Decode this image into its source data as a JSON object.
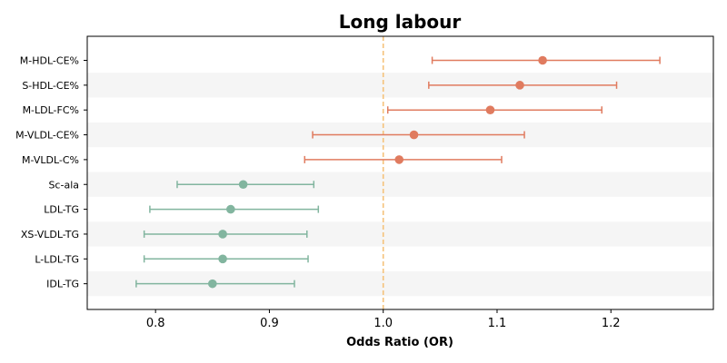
{
  "chart_data": {
    "type": "forest",
    "title": "Long labour",
    "xlabel": "Odds Ratio (OR)",
    "xlim": [
      0.74,
      1.29
    ],
    "xticks": [
      0.8,
      0.9,
      1.0,
      1.1,
      1.2
    ],
    "xtick_labels": [
      "0.8",
      "0.9",
      "1.0",
      "1.1",
      "1.2"
    ],
    "reference_line": 1.0,
    "reference_color": "#f5c27a",
    "band_color": "#f5f5f5",
    "colors": {
      "positive": "#e07b5f",
      "negative": "#82b59f"
    },
    "rows": [
      {
        "label": "M-HDL-CE%",
        "or": 1.14,
        "lo": 1.043,
        "hi": 1.243,
        "group": "positive"
      },
      {
        "label": "S-HDL-CE%",
        "or": 1.12,
        "lo": 1.04,
        "hi": 1.205,
        "group": "positive"
      },
      {
        "label": "M-LDL-FC%",
        "or": 1.094,
        "lo": 1.004,
        "hi": 1.192,
        "group": "positive"
      },
      {
        "label": "M-VLDL-CE%",
        "or": 1.027,
        "lo": 0.938,
        "hi": 1.124,
        "group": "positive"
      },
      {
        "label": "M-VLDL-C%",
        "or": 1.014,
        "lo": 0.931,
        "hi": 1.104,
        "group": "positive"
      },
      {
        "label": "Sc-ala",
        "or": 0.877,
        "lo": 0.819,
        "hi": 0.939,
        "group": "negative"
      },
      {
        "label": "LDL-TG",
        "or": 0.866,
        "lo": 0.795,
        "hi": 0.943,
        "group": "negative"
      },
      {
        "label": "XS-VLDL-TG",
        "or": 0.859,
        "lo": 0.79,
        "hi": 0.933,
        "group": "negative"
      },
      {
        "label": "L-LDL-TG",
        "or": 0.859,
        "lo": 0.79,
        "hi": 0.934,
        "group": "negative"
      },
      {
        "label": "IDL-TG",
        "or": 0.85,
        "lo": 0.783,
        "hi": 0.922,
        "group": "negative"
      }
    ]
  }
}
